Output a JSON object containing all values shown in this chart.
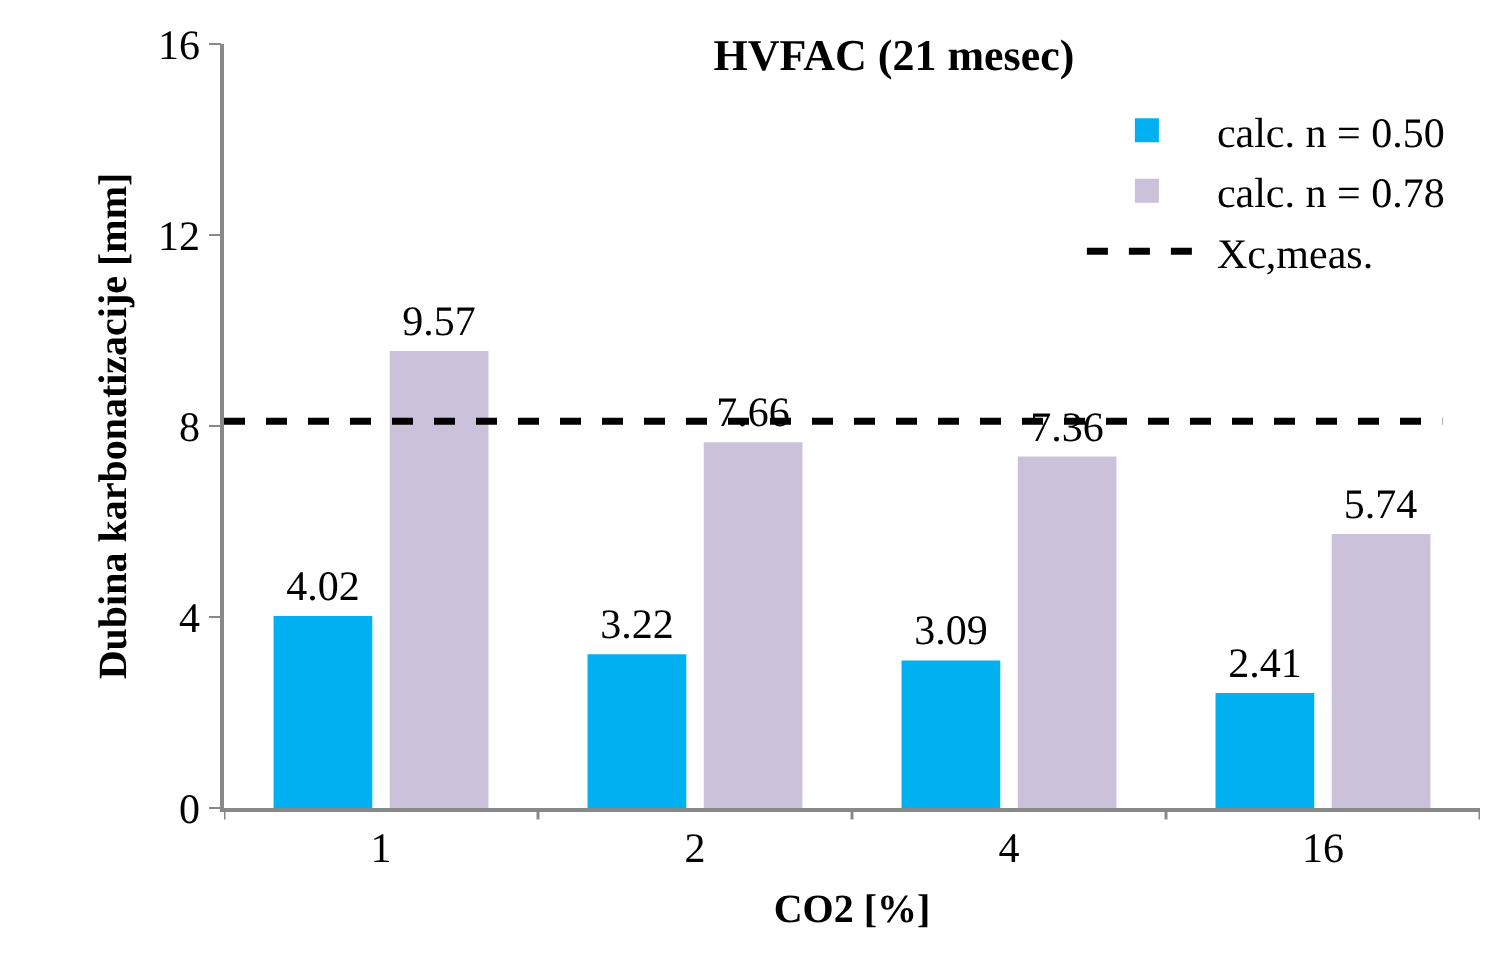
{
  "chart_data": {
    "type": "bar",
    "title": "HVFAC (21 mesec)",
    "xlabel": "CO2 [%]",
    "ylabel": "Dubina karbonatizacije [mm]",
    "categories": [
      "1",
      "2",
      "4",
      "16"
    ],
    "series": [
      {
        "name": "calc. n = 0.50",
        "color": "#00b0f0",
        "values": [
          4.02,
          3.22,
          3.09,
          2.41
        ]
      },
      {
        "name": "calc. n = 0.78",
        "color": "#ccc1da",
        "values": [
          9.57,
          7.66,
          7.36,
          5.74
        ]
      }
    ],
    "ref_lines": [
      {
        "axis": "y",
        "value": 8.1,
        "label": "Xc,meas.",
        "color": "#000000",
        "line_style": "dashed"
      }
    ],
    "ylim": [
      0,
      16
    ],
    "yticks": [
      0,
      4,
      8,
      12,
      16
    ],
    "data_labels": true,
    "legend": "top right"
  }
}
